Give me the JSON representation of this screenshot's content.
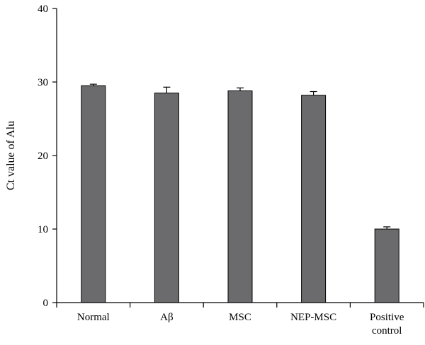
{
  "chart_data": {
    "type": "bar",
    "categories": [
      {
        "lines": [
          "Normal"
        ]
      },
      {
        "lines": [
          "Aβ"
        ]
      },
      {
        "lines": [
          "MSC"
        ]
      },
      {
        "lines": [
          "NEP-MSC"
        ]
      },
      {
        "lines": [
          "Positive",
          "control"
        ]
      }
    ],
    "values": [
      29.5,
      28.5,
      28.8,
      28.2,
      10.0
    ],
    "errors": [
      0.2,
      0.8,
      0.4,
      0.5,
      0.3
    ],
    "ylabel": "Ct value of Alu",
    "ylim": [
      0,
      40
    ],
    "yticks": [
      0,
      10,
      20,
      30,
      40
    ],
    "bar_color": "#6b6b6d",
    "grid": false,
    "legend": "none"
  }
}
